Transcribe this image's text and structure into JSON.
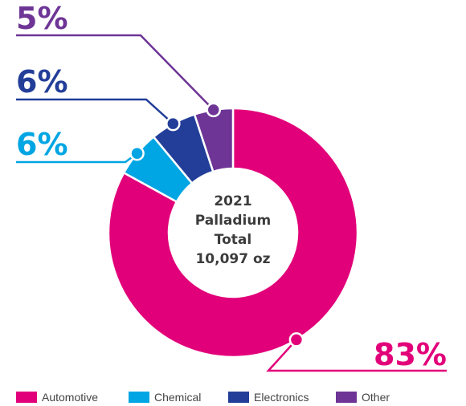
{
  "chart_data": {
    "type": "pie",
    "categories": [
      "Automotive",
      "Chemical",
      "Electronics",
      "Other"
    ],
    "values": [
      83,
      6,
      6,
      5
    ],
    "labels": [
      "83%",
      "6%",
      "6%",
      "5%"
    ],
    "colors": [
      "#e2007a",
      "#00a5e3",
      "#233e99",
      "#6e3596"
    ],
    "center_text": [
      "2021",
      "Palladium",
      "Total",
      "10,097 oz"
    ],
    "legend_position": "bottom"
  }
}
